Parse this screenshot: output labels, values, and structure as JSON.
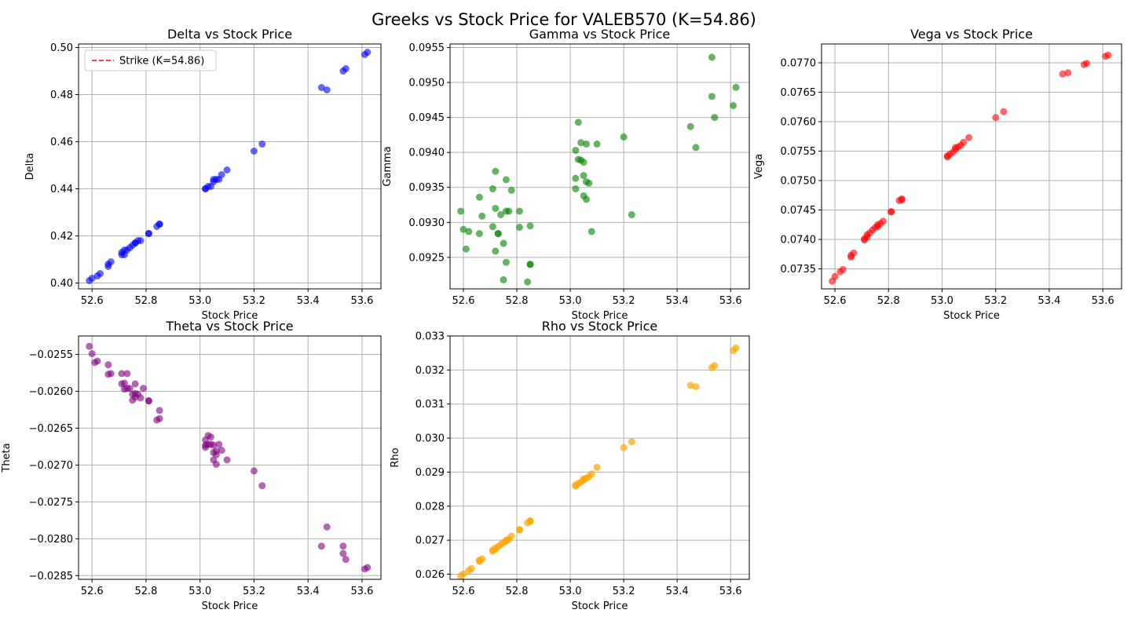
{
  "figure": {
    "title": "Greeks vs Stock Price for VALEB570 (K=54.86)"
  },
  "chart_data": [
    {
      "type": "scatter",
      "id": "delta",
      "title": "Delta vs Stock Price",
      "xlabel": "Stock Price",
      "ylabel": "Delta",
      "xlim": [
        52.55,
        53.67
      ],
      "ylim": [
        0.3975,
        0.5015
      ],
      "xticks": [
        52.6,
        52.8,
        53.0,
        53.2,
        53.4,
        53.6
      ],
      "xtick_labels": [
        "52.6",
        "52.8",
        "53.0",
        "53.2",
        "53.4",
        "53.6"
      ],
      "yticks": [
        0.4,
        0.42,
        0.44,
        0.46,
        0.48,
        0.5
      ],
      "ytick_labels": [
        "0.40",
        "0.42",
        "0.44",
        "0.46",
        "0.48",
        "0.50"
      ],
      "grid": true,
      "color": "#0000ff",
      "alpha": 0.6,
      "legend": {
        "position": "upper-left",
        "entries": [
          {
            "label": "Strike (K=54.86)",
            "color": "#ff0000",
            "style": "dashed"
          }
        ]
      },
      "x": [
        52.59,
        52.6,
        52.62,
        52.63,
        52.66,
        52.66,
        52.67,
        52.71,
        52.71,
        52.72,
        52.72,
        52.73,
        52.74,
        52.75,
        52.76,
        52.76,
        52.77,
        52.78,
        52.81,
        52.81,
        52.84,
        52.85,
        52.85,
        53.02,
        53.02,
        53.03,
        53.04,
        53.05,
        53.05,
        53.06,
        53.07,
        53.08,
        53.1,
        53.2,
        53.23,
        53.45,
        53.47,
        53.53,
        53.54,
        53.61,
        53.62
      ],
      "y": [
        0.401,
        0.402,
        0.403,
        0.404,
        0.407,
        0.408,
        0.409,
        0.412,
        0.413,
        0.412,
        0.414,
        0.414,
        0.415,
        0.416,
        0.417,
        0.417,
        0.418,
        0.418,
        0.421,
        0.421,
        0.424,
        0.425,
        0.425,
        0.44,
        0.44,
        0.441,
        0.441,
        0.443,
        0.444,
        0.444,
        0.444,
        0.446,
        0.448,
        0.456,
        0.459,
        0.483,
        0.482,
        0.49,
        0.491,
        0.497,
        0.498
      ]
    },
    {
      "type": "scatter",
      "id": "gamma",
      "title": "Gamma vs Stock Price",
      "xlabel": "Stock Price",
      "ylabel": "Gamma",
      "xlim": [
        52.55,
        53.67
      ],
      "ylim": [
        0.09205,
        0.09555
      ],
      "xticks": [
        52.6,
        52.8,
        53.0,
        53.2,
        53.4,
        53.6
      ],
      "xtick_labels": [
        "52.6",
        "52.8",
        "53.0",
        "53.2",
        "53.4",
        "53.6"
      ],
      "yticks": [
        0.0925,
        0.093,
        0.0935,
        0.094,
        0.0945,
        0.095,
        0.0955
      ],
      "ytick_labels": [
        "0.0925",
        "0.0930",
        "0.0935",
        "0.0940",
        "0.0945",
        "0.0950",
        "0.0955"
      ],
      "grid": true,
      "color": "#008000",
      "alpha": 0.6,
      "x": [
        52.59,
        52.6,
        52.61,
        52.62,
        52.66,
        52.66,
        52.67,
        52.71,
        52.71,
        52.72,
        52.72,
        52.72,
        52.73,
        52.73,
        52.74,
        52.75,
        52.75,
        52.76,
        52.76,
        52.76,
        52.77,
        52.78,
        52.81,
        52.81,
        52.84,
        52.85,
        52.85,
        52.85,
        53.02,
        53.02,
        53.02,
        53.03,
        53.03,
        53.04,
        53.04,
        53.05,
        53.05,
        53.05,
        53.06,
        53.06,
        53.06,
        53.07,
        53.08,
        53.1,
        53.2,
        53.23,
        53.45,
        53.47,
        53.53,
        53.53,
        53.54,
        53.61,
        53.62
      ],
      "y": [
        0.09316,
        0.0929,
        0.09262,
        0.09287,
        0.09336,
        0.09284,
        0.09309,
        0.09348,
        0.09294,
        0.09259,
        0.09373,
        0.0932,
        0.09284,
        0.09284,
        0.09311,
        0.09218,
        0.0927,
        0.09243,
        0.09316,
        0.09361,
        0.09316,
        0.09346,
        0.09293,
        0.09316,
        0.09215,
        0.0924,
        0.0924,
        0.09295,
        0.09348,
        0.09363,
        0.09403,
        0.09443,
        0.0939,
        0.09389,
        0.09414,
        0.09386,
        0.09367,
        0.09338,
        0.09358,
        0.09412,
        0.09333,
        0.09356,
        0.09287,
        0.09412,
        0.09422,
        0.09311,
        0.09437,
        0.09407,
        0.09536,
        0.0948,
        0.0945,
        0.09467,
        0.09493
      ]
    },
    {
      "type": "scatter",
      "id": "vega",
      "title": "Vega vs Stock Price",
      "xlabel": "Stock Price",
      "ylabel": "Vega",
      "xlim": [
        52.55,
        53.67
      ],
      "ylim": [
        0.07316,
        0.07732
      ],
      "xticks": [
        52.6,
        52.8,
        53.0,
        53.2,
        53.4,
        53.6
      ],
      "xtick_labels": [
        "52.6",
        "52.8",
        "53.0",
        "53.2",
        "53.4",
        "53.6"
      ],
      "yticks": [
        0.0735,
        0.074,
        0.0745,
        0.075,
        0.0755,
        0.076,
        0.0765,
        0.077
      ],
      "ytick_labels": [
        "0.0735",
        "0.0740",
        "0.0745",
        "0.0750",
        "0.0755",
        "0.0760",
        "0.0765",
        "0.0770"
      ],
      "grid": true,
      "color": "#ff0000",
      "alpha": 0.6,
      "x": [
        52.59,
        52.6,
        52.62,
        52.63,
        52.66,
        52.66,
        52.67,
        52.71,
        52.71,
        52.72,
        52.72,
        52.73,
        52.74,
        52.75,
        52.76,
        52.76,
        52.77,
        52.78,
        52.81,
        52.81,
        52.84,
        52.85,
        52.85,
        53.02,
        53.02,
        53.03,
        53.04,
        53.05,
        53.05,
        53.06,
        53.07,
        53.08,
        53.1,
        53.2,
        53.23,
        53.45,
        53.47,
        53.53,
        53.54,
        53.61,
        53.62
      ],
      "y": [
        0.07329,
        0.07337,
        0.07345,
        0.07349,
        0.0737,
        0.07373,
        0.07377,
        0.07399,
        0.07401,
        0.07404,
        0.07408,
        0.07411,
        0.07416,
        0.0742,
        0.07422,
        0.07425,
        0.07427,
        0.07431,
        0.07447,
        0.07447,
        0.07466,
        0.07467,
        0.07469,
        0.0754,
        0.07542,
        0.07545,
        0.07548,
        0.07553,
        0.07556,
        0.07557,
        0.0756,
        0.07565,
        0.07573,
        0.07607,
        0.07617,
        0.07681,
        0.07683,
        0.07697,
        0.07699,
        0.07711,
        0.07713
      ]
    },
    {
      "type": "scatter",
      "id": "theta",
      "title": "Theta vs Stock Price",
      "xlabel": "Stock Price",
      "ylabel": "Theta",
      "xlim": [
        52.55,
        53.67
      ],
      "ylim": [
        -0.02855,
        -0.02525
      ],
      "xticks": [
        52.6,
        52.8,
        53.0,
        53.2,
        53.4,
        53.6
      ],
      "xtick_labels": [
        "52.6",
        "52.8",
        "53.0",
        "53.2",
        "53.4",
        "53.6"
      ],
      "yticks": [
        -0.0285,
        -0.028,
        -0.0275,
        -0.027,
        -0.0265,
        -0.026,
        -0.0255
      ],
      "ytick_labels": [
        "−0.0285",
        "−0.0280",
        "−0.0275",
        "−0.0270",
        "−0.0265",
        "−0.0260",
        "−0.0255"
      ],
      "grid": true,
      "color": "#800080",
      "alpha": 0.6,
      "x": [
        52.59,
        52.6,
        52.61,
        52.62,
        52.66,
        52.66,
        52.67,
        52.71,
        52.71,
        52.72,
        52.72,
        52.73,
        52.73,
        52.74,
        52.75,
        52.75,
        52.76,
        52.76,
        52.76,
        52.77,
        52.78,
        52.79,
        52.81,
        52.81,
        52.84,
        52.85,
        52.85,
        53.02,
        53.02,
        53.02,
        53.03,
        53.03,
        53.04,
        53.04,
        53.05,
        53.05,
        53.05,
        53.06,
        53.06,
        53.06,
        53.07,
        53.08,
        53.1,
        53.2,
        53.23,
        53.45,
        53.47,
        53.53,
        53.53,
        53.54,
        53.61,
        53.62
      ],
      "y": [
        -0.02539,
        -0.02549,
        -0.02561,
        -0.02559,
        -0.02564,
        -0.02577,
        -0.02576,
        -0.02576,
        -0.0259,
        -0.02589,
        -0.02597,
        -0.02596,
        -0.02576,
        -0.02596,
        -0.02604,
        -0.02612,
        -0.02603,
        -0.02608,
        -0.0259,
        -0.02604,
        -0.02609,
        -0.02596,
        -0.02613,
        -0.02613,
        -0.02639,
        -0.02626,
        -0.02637,
        -0.02666,
        -0.02673,
        -0.02676,
        -0.0266,
        -0.02672,
        -0.02662,
        -0.02672,
        -0.02673,
        -0.02683,
        -0.02693,
        -0.02699,
        -0.02686,
        -0.02681,
        -0.02672,
        -0.0268,
        -0.02693,
        -0.02708,
        -0.02728,
        -0.0281,
        -0.02784,
        -0.0281,
        -0.0282,
        -0.02828,
        -0.02841,
        -0.02839
      ]
    },
    {
      "type": "scatter",
      "id": "rho",
      "title": "Rho vs Stock Price",
      "xlabel": "Stock Price",
      "ylabel": "Rho",
      "xlim": [
        52.55,
        53.67
      ],
      "ylim": [
        0.02585,
        0.033
      ],
      "xticks": [
        52.6,
        52.8,
        53.0,
        53.2,
        53.4,
        53.6
      ],
      "xtick_labels": [
        "52.6",
        "52.8",
        "53.0",
        "53.2",
        "53.4",
        "53.6"
      ],
      "yticks": [
        0.026,
        0.027,
        0.028,
        0.029,
        0.03,
        0.031,
        0.032,
        0.033
      ],
      "ytick_labels": [
        "0.026",
        "0.027",
        "0.028",
        "0.029",
        "0.030",
        "0.031",
        "0.032",
        "0.033"
      ],
      "grid": true,
      "color": "#ffa500",
      "alpha": 0.7,
      "x": [
        52.59,
        52.6,
        52.62,
        52.63,
        52.66,
        52.66,
        52.67,
        52.71,
        52.71,
        52.72,
        52.72,
        52.73,
        52.74,
        52.75,
        52.76,
        52.76,
        52.77,
        52.78,
        52.81,
        52.81,
        52.84,
        52.85,
        52.85,
        53.02,
        53.02,
        53.03,
        53.04,
        53.05,
        53.05,
        53.06,
        53.07,
        53.08,
        53.1,
        53.2,
        53.23,
        53.45,
        53.47,
        53.53,
        53.54,
        53.61,
        53.62
      ],
      "y": [
        0.02595,
        0.02601,
        0.02611,
        0.02617,
        0.02638,
        0.02641,
        0.02645,
        0.02668,
        0.02671,
        0.02673,
        0.02677,
        0.02681,
        0.02687,
        0.02693,
        0.02697,
        0.027,
        0.02703,
        0.02712,
        0.0273,
        0.02731,
        0.02751,
        0.02755,
        0.02757,
        0.02859,
        0.02862,
        0.02866,
        0.02871,
        0.02877,
        0.0288,
        0.02882,
        0.02887,
        0.02895,
        0.02914,
        0.02972,
        0.02989,
        0.03155,
        0.03151,
        0.03207,
        0.03213,
        0.03257,
        0.03265
      ]
    }
  ]
}
